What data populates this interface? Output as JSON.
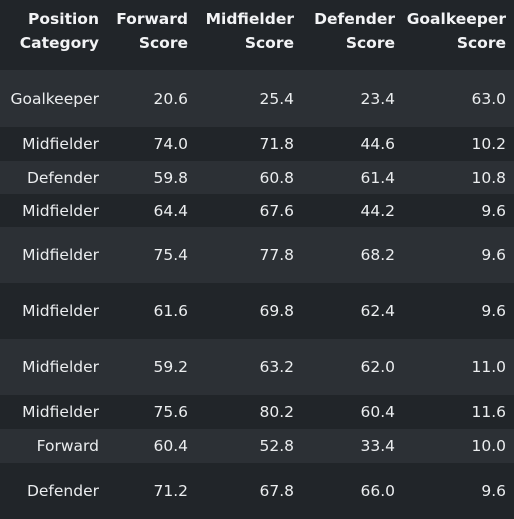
{
  "table": {
    "headers": [
      [
        "Position",
        "Category"
      ],
      [
        "Forward",
        "Score"
      ],
      [
        "Midfielder",
        "Score"
      ],
      [
        "Defender",
        "Score"
      ],
      [
        "Goalkeeper",
        "Score"
      ]
    ],
    "rows": [
      [
        "Goalkeeper",
        "20.6",
        "25.4",
        "23.4",
        "63.0"
      ],
      [
        "Midfielder",
        "74.0",
        "71.8",
        "44.6",
        "10.2"
      ],
      [
        "Defender",
        "59.8",
        "60.8",
        "61.4",
        "10.8"
      ],
      [
        "Midfielder",
        "64.4",
        "67.6",
        "44.2",
        "9.6"
      ],
      [
        "Midfielder",
        "75.4",
        "77.8",
        "68.2",
        "9.6"
      ],
      [
        "Midfielder",
        "61.6",
        "69.8",
        "62.4",
        "9.6"
      ],
      [
        "Midfielder",
        "59.2",
        "63.2",
        "62.0",
        "11.0"
      ],
      [
        "Midfielder",
        "75.6",
        "80.2",
        "60.4",
        "11.6"
      ],
      [
        "Forward",
        "60.4",
        "52.8",
        "33.4",
        "10.0"
      ],
      [
        "Defender",
        "71.2",
        "67.8",
        "66.0",
        "9.6"
      ]
    ]
  }
}
